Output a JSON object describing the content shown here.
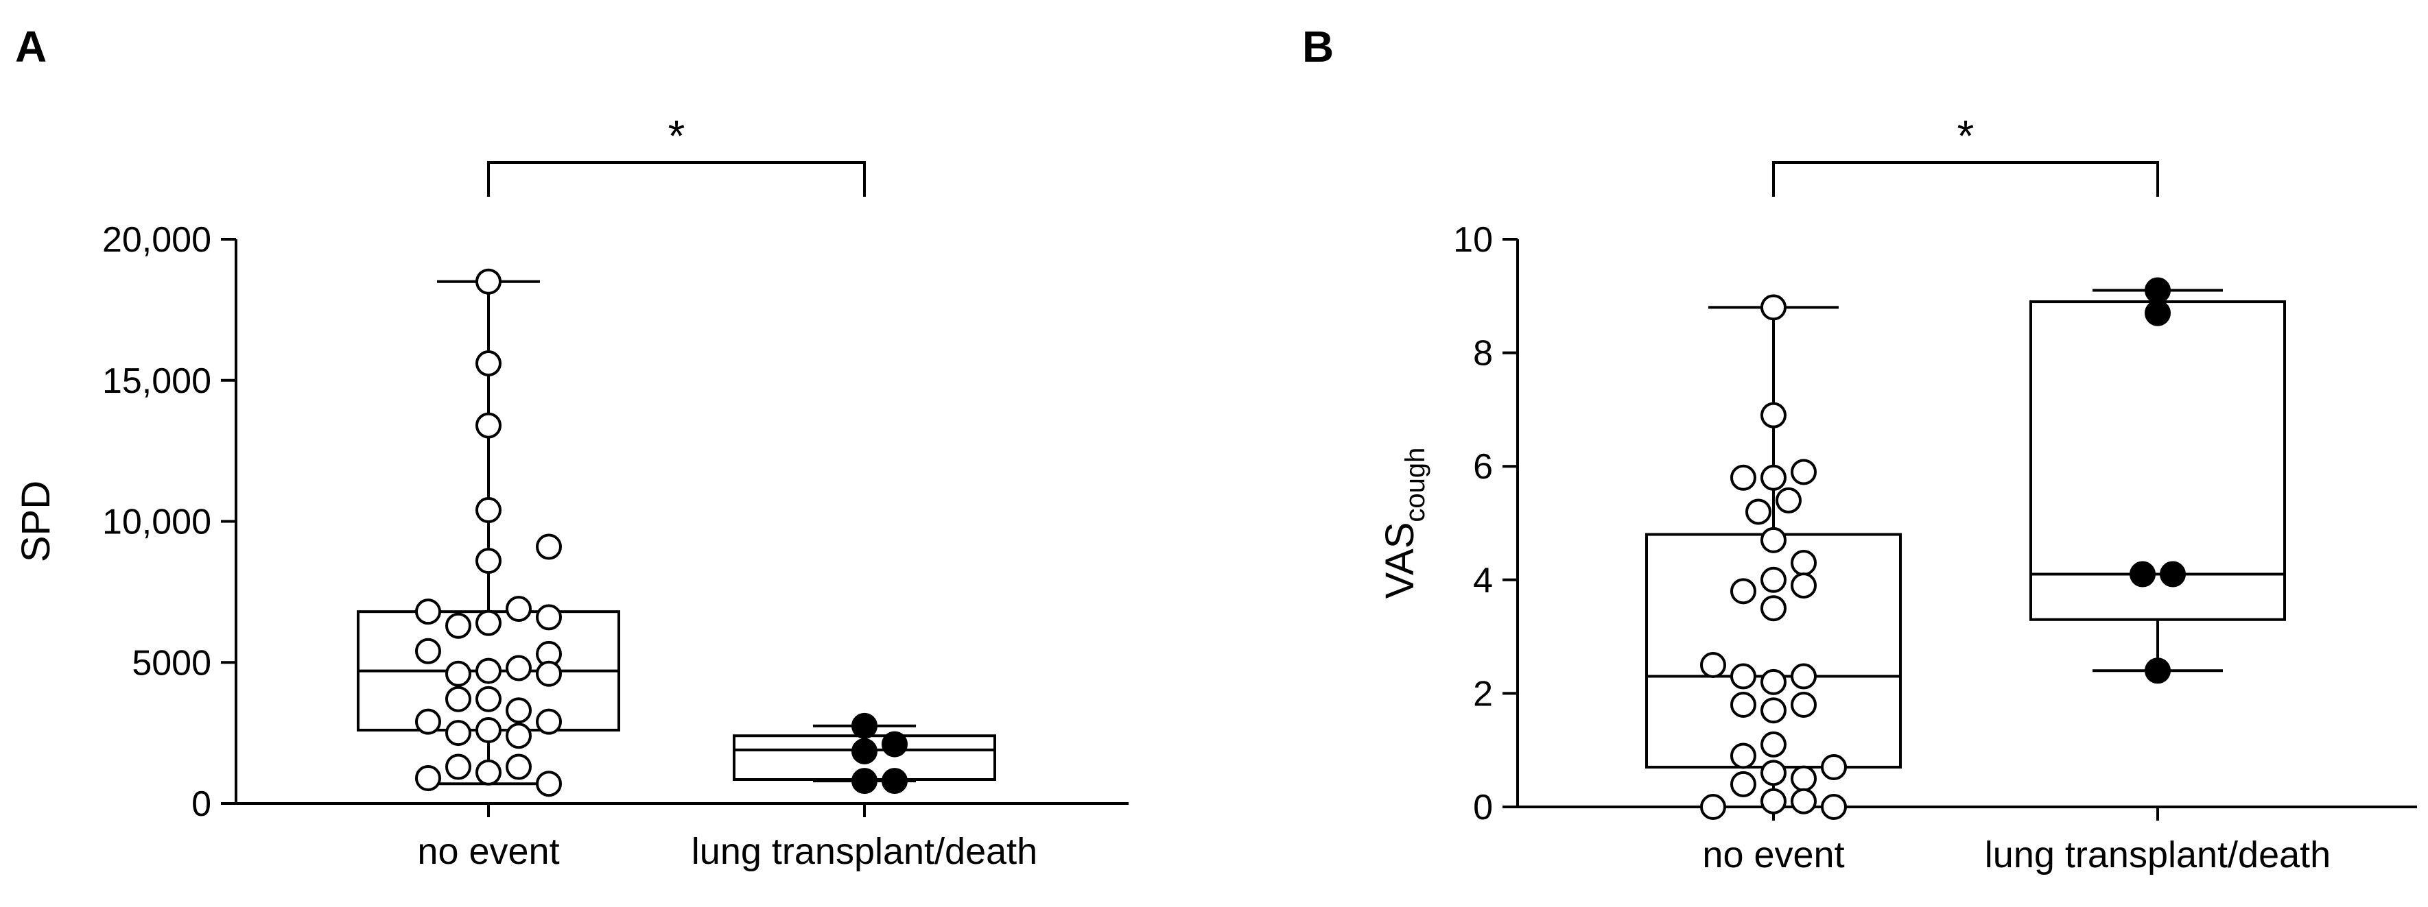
{
  "chart_data": [
    {
      "type": "box",
      "panel_label": "A",
      "ylabel": "SPD",
      "ylabel_sub": "",
      "ylim": [
        0,
        20000
      ],
      "yticks": [
        0,
        5000,
        10000,
        15000,
        20000
      ],
      "ytick_labels": [
        "0",
        "5000",
        "10,000",
        "15,000",
        "20,000"
      ],
      "categories": [
        "no event",
        "lung transplant/death"
      ],
      "significance": "*",
      "groups": [
        {
          "name": "no event",
          "marker": "open",
          "box": {
            "whisker_low": 700,
            "q1": 2600,
            "median": 4700,
            "q3": 6800,
            "whisker_high": 18500
          },
          "points": [
            {
              "dx": 0,
              "y": 18500
            },
            {
              "dx": 0,
              "y": 15600
            },
            {
              "dx": 0,
              "y": 13400
            },
            {
              "dx": 0,
              "y": 10400
            },
            {
              "dx": 0,
              "y": 8600
            },
            {
              "dx": 2,
              "y": 9100
            },
            {
              "dx": -2,
              "y": 6800
            },
            {
              "dx": -1,
              "y": 6300
            },
            {
              "dx": 0,
              "y": 6400
            },
            {
              "dx": 1,
              "y": 6900
            },
            {
              "dx": 2,
              "y": 6600
            },
            {
              "dx": -2,
              "y": 5400
            },
            {
              "dx": -1,
              "y": 4600
            },
            {
              "dx": 0,
              "y": 4700
            },
            {
              "dx": 1,
              "y": 4800
            },
            {
              "dx": 2,
              "y": 5300
            },
            {
              "dx": 2,
              "y": 4600
            },
            {
              "dx": -1,
              "y": 3700
            },
            {
              "dx": 0,
              "y": 3700
            },
            {
              "dx": 1,
              "y": 3300
            },
            {
              "dx": -2,
              "y": 2900
            },
            {
              "dx": -1,
              "y": 2500
            },
            {
              "dx": 0,
              "y": 2600
            },
            {
              "dx": 1,
              "y": 2400
            },
            {
              "dx": 2,
              "y": 2900
            },
            {
              "dx": -1,
              "y": 1300
            },
            {
              "dx": 0,
              "y": 1100
            },
            {
              "dx": 1,
              "y": 1300
            },
            {
              "dx": -2,
              "y": 900
            },
            {
              "dx": 2,
              "y": 700
            }
          ]
        },
        {
          "name": "lung transplant/death",
          "marker": "filled",
          "box": {
            "whisker_low": 800,
            "q1": 850,
            "median": 1900,
            "q3": 2400,
            "whisker_high": 2750
          },
          "points": [
            {
              "dx": 0,
              "y": 2750
            },
            {
              "dx": 0,
              "y": 1850
            },
            {
              "dx": 1,
              "y": 2100
            },
            {
              "dx": 0,
              "y": 800
            },
            {
              "dx": 1,
              "y": 800
            }
          ]
        }
      ]
    },
    {
      "type": "box",
      "panel_label": "B",
      "ylabel": "VAS",
      "ylabel_sub": "cough",
      "ylim": [
        0,
        10
      ],
      "yticks": [
        0,
        2,
        4,
        6,
        8,
        10
      ],
      "ytick_labels": [
        "0",
        "2",
        "4",
        "6",
        "8",
        "10"
      ],
      "categories": [
        "no event",
        "lung transplant/death"
      ],
      "significance": "*",
      "groups": [
        {
          "name": "no event",
          "marker": "open",
          "box": {
            "whisker_low": 0,
            "q1": 0.7,
            "median": 2.3,
            "q3": 4.8,
            "whisker_high": 8.8
          },
          "points": [
            {
              "dx": 0,
              "y": 8.8
            },
            {
              "dx": 0,
              "y": 6.9
            },
            {
              "dx": -1,
              "y": 5.8
            },
            {
              "dx": 0,
              "y": 5.8
            },
            {
              "dx": 1,
              "y": 5.9
            },
            {
              "dx": -0.5,
              "y": 5.2
            },
            {
              "dx": 0.5,
              "y": 5.4
            },
            {
              "dx": 0,
              "y": 4.7
            },
            {
              "dx": 0,
              "y": 4.0
            },
            {
              "dx": 1,
              "y": 4.3
            },
            {
              "dx": -1,
              "y": 3.8
            },
            {
              "dx": 0,
              "y": 3.5
            },
            {
              "dx": 1,
              "y": 3.9
            },
            {
              "dx": -2,
              "y": 2.5
            },
            {
              "dx": -1,
              "y": 2.3
            },
            {
              "dx": 0,
              "y": 2.2
            },
            {
              "dx": 1,
              "y": 2.3
            },
            {
              "dx": -1,
              "y": 1.8
            },
            {
              "dx": 0,
              "y": 1.7
            },
            {
              "dx": 1,
              "y": 1.8
            },
            {
              "dx": 0,
              "y": 1.1
            },
            {
              "dx": -1,
              "y": 0.9
            },
            {
              "dx": 1,
              "y": 0.5
            },
            {
              "dx": 2,
              "y": 0.7
            },
            {
              "dx": 0,
              "y": 0.6
            },
            {
              "dx": -1,
              "y": 0.4
            },
            {
              "dx": 0,
              "y": 0.1
            },
            {
              "dx": 1,
              "y": 0.1
            },
            {
              "dx": -2,
              "y": 0.0
            },
            {
              "dx": 2,
              "y": 0.0
            }
          ]
        },
        {
          "name": "lung transplant/death",
          "marker": "filled",
          "box": {
            "whisker_low": 2.4,
            "q1": 3.3,
            "median": 4.1,
            "q3": 8.9,
            "whisker_high": 9.1
          },
          "points": [
            {
              "dx": 0,
              "y": 9.1
            },
            {
              "dx": 0,
              "y": 8.7
            },
            {
              "dx": -0.5,
              "y": 4.1
            },
            {
              "dx": 0.5,
              "y": 4.1
            },
            {
              "dx": 0,
              "y": 2.4
            }
          ]
        }
      ]
    }
  ]
}
